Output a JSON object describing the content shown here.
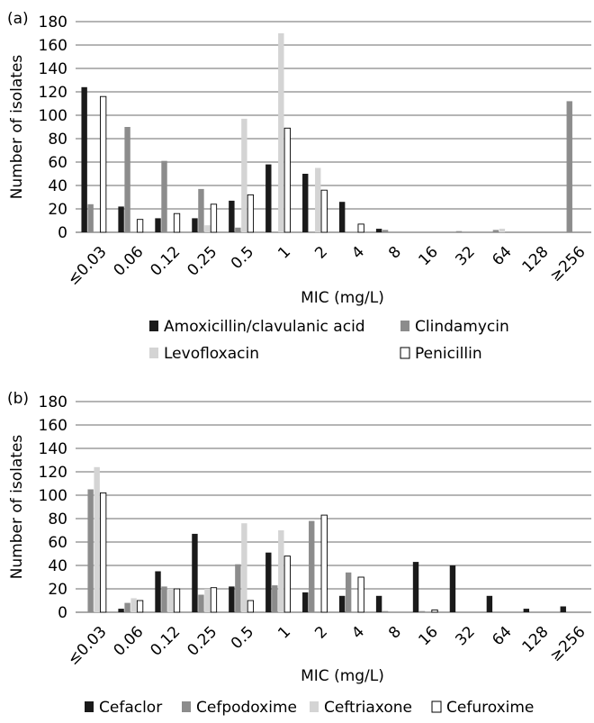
{
  "chart_data": [
    {
      "type": "bar",
      "panel_label": "(a)",
      "xlabel": "MIC (mg/L)",
      "ylabel": "Number of isolates",
      "ylim": [
        0,
        180
      ],
      "yticks": [
        0,
        20,
        40,
        60,
        80,
        100,
        120,
        140,
        160,
        180
      ],
      "grid": true,
      "legend_position": "bottom",
      "categories": [
        "≤0.03",
        "0.06",
        "0.12",
        "0.25",
        "0.5",
        "1",
        "2",
        "4",
        "8",
        "16",
        "32",
        "64",
        "128",
        "≥256"
      ],
      "series": [
        {
          "name": "Amoxicillin/clavulanic acid",
          "color": "#1a1a1a",
          "values": [
            124,
            22,
            12,
            12,
            27,
            58,
            50,
            26,
            3,
            0,
            0,
            0,
            0,
            0
          ]
        },
        {
          "name": "Clindamycin",
          "color": "#8c8c8c",
          "values": [
            24,
            90,
            61,
            37,
            4,
            0,
            0,
            0,
            2,
            0,
            1,
            2,
            0,
            112
          ]
        },
        {
          "name": "Levofloxacin",
          "color": "#d4d4d4",
          "values": [
            0,
            0,
            0,
            6,
            97,
            170,
            55,
            0,
            0,
            0,
            0,
            3,
            0,
            0
          ]
        },
        {
          "name": "Penicillin",
          "color": "#ffffff",
          "values": [
            116,
            11,
            16,
            24,
            32,
            89,
            36,
            7,
            0,
            0,
            0,
            0,
            0,
            0
          ]
        }
      ]
    },
    {
      "type": "bar",
      "panel_label": "(b)",
      "xlabel": "MIC (mg/L)",
      "ylabel": "Number of isolates",
      "ylim": [
        0,
        180
      ],
      "yticks": [
        0,
        20,
        40,
        60,
        80,
        100,
        120,
        140,
        160,
        180
      ],
      "grid": true,
      "legend_position": "bottom",
      "categories": [
        "≤0.03",
        "0.06",
        "0.12",
        "0.25",
        "0.5",
        "1",
        "2",
        "4",
        "8",
        "16",
        "32",
        "64",
        "128",
        "≥256"
      ],
      "series": [
        {
          "name": "Cefaclor",
          "color": "#1a1a1a",
          "values": [
            0,
            3,
            35,
            67,
            22,
            51,
            17,
            14,
            14,
            43,
            40,
            14,
            3,
            5
          ]
        },
        {
          "name": "Cefpodoxime",
          "color": "#8c8c8c",
          "values": [
            105,
            8,
            22,
            15,
            41,
            23,
            78,
            34,
            1,
            1,
            0,
            0,
            0,
            0
          ]
        },
        {
          "name": "Ceftriaxone",
          "color": "#d4d4d4",
          "values": [
            124,
            12,
            20,
            20,
            76,
            70,
            0,
            0,
            0,
            0,
            0,
            0,
            0,
            0
          ]
        },
        {
          "name": "Cefuroxime",
          "color": "#ffffff",
          "values": [
            102,
            10,
            20,
            21,
            10,
            48,
            83,
            30,
            0,
            2,
            0,
            0,
            0,
            0
          ]
        }
      ]
    }
  ]
}
